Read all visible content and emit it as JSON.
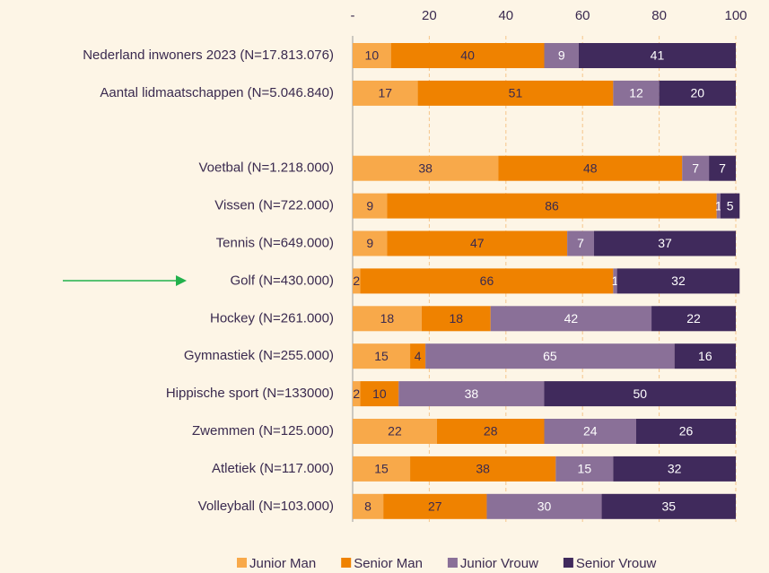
{
  "chart_data": {
    "type": "stacked_bar_horizontal",
    "categories": [
      "Nederland inwoners 2023 (N=17.813.076)",
      "Aantal lidmaatschappen (N=5.046.840)",
      null,
      "Voetbal (N=1.218.000)",
      "Vissen (N=722.000)",
      "Tennis (N=649.000)",
      "Golf (N=430.000)",
      "Hockey (N=261.000)",
      "Gymnastiek (N=255.000)",
      "Hippische sport (N=133000)",
      "Zwemmen (N=125.000)",
      "Atletiek (N=117.000)",
      "Volleyball (N=103.000)"
    ],
    "series": [
      {
        "name": "Junior Man",
        "color": "#f8a94a",
        "values": [
          10,
          17,
          null,
          38,
          9,
          9,
          2,
          18,
          15,
          2,
          22,
          15,
          8
        ]
      },
      {
        "name": "Senior Man",
        "color": "#ef8200",
        "values": [
          40,
          51,
          null,
          48,
          86,
          47,
          66,
          18,
          4,
          10,
          28,
          38,
          27
        ]
      },
      {
        "name": "Junior Vrouw",
        "color": "#8a7098",
        "values": [
          9,
          12,
          null,
          7,
          1,
          7,
          1,
          42,
          65,
          38,
          24,
          15,
          30
        ]
      },
      {
        "name": "Senior Vrouw",
        "color": "#402a5c",
        "values": [
          41,
          20,
          null,
          7,
          5,
          37,
          32,
          22,
          16,
          50,
          26,
          32,
          35
        ]
      }
    ],
    "xlim": [
      0,
      100
    ],
    "xticks": [
      {
        "value": 0,
        "label": "-"
      },
      20,
      40,
      60,
      80,
      100
    ],
    "grid": true,
    "legend": "bottom"
  }
}
